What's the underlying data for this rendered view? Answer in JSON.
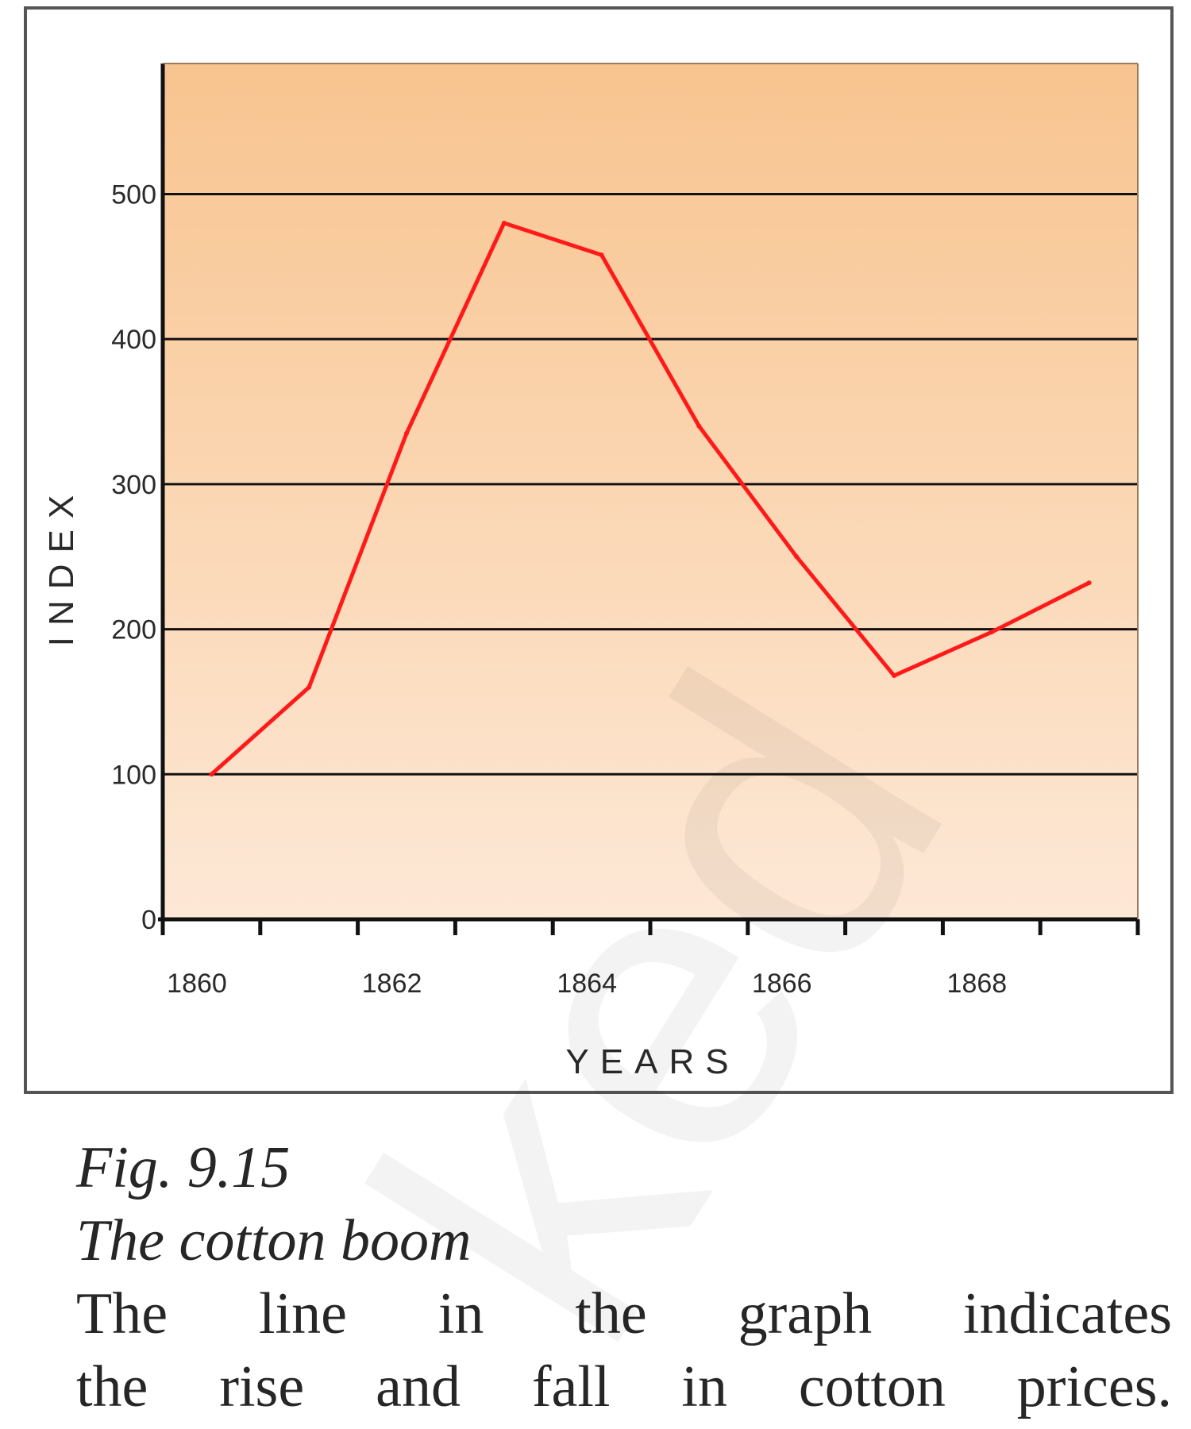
{
  "chart_data": {
    "type": "line",
    "xlabel": "YEARS",
    "ylabel": "INDEX",
    "x_tick_labels": [
      "1860",
      "1862",
      "1864",
      "1866",
      "1868"
    ],
    "y_tick_labels": [
      "0",
      "100",
      "200",
      "300",
      "400",
      "500"
    ],
    "ylim": [
      0,
      590
    ],
    "xlim": [
      1860,
      1870
    ],
    "grid": "horizontal",
    "series": [
      {
        "color": "#ff1a1a",
        "x": [
          1860.5,
          1861.5,
          1862.5,
          1863.5,
          1864.5,
          1865.5,
          1866.5,
          1867.5,
          1868.5,
          1869.5
        ],
        "y": [
          100,
          160,
          335,
          480,
          458,
          340,
          250,
          168,
          198,
          232
        ]
      }
    ],
    "colors": {
      "background_top": "#f8c48f",
      "background_bottom": "#fde8d6",
      "gridline": "#111111",
      "axis": "#111111",
      "frame": "#555555"
    }
  },
  "caption": {
    "figure_number": "Fig. 9.15",
    "figure_title": "The cotton boom",
    "description_lines": [
      "The line in the graph indicates",
      "the rise and fall in cotton prices."
    ]
  },
  "watermark_text": "ked"
}
